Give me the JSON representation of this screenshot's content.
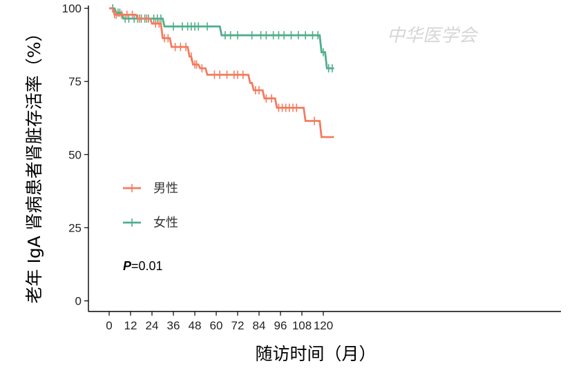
{
  "chart_data": {
    "type": "line",
    "subtype": "kaplan-meier step",
    "xlabel": "随访时间（月）",
    "ylabel": "老年 IgA 肾病患者肾脏存活率（%）",
    "xlim": [
      -3,
      125
    ],
    "ylim": [
      -3,
      101
    ],
    "xticks": [
      0,
      12,
      24,
      36,
      48,
      60,
      72,
      84,
      96,
      108,
      120
    ],
    "yticks": [
      0,
      25,
      50,
      75,
      100
    ],
    "grid": false,
    "legend_position": "center-left",
    "annotation": {
      "bold": "P",
      "rest": "=0.01"
    },
    "watermark": "中华医学会",
    "series": [
      {
        "name": "男性",
        "color": "#f47b5e",
        "steps": [
          [
            0,
            100
          ],
          [
            2,
            100
          ],
          [
            3,
            97.8
          ],
          [
            15,
            97.8
          ],
          [
            16,
            96.5
          ],
          [
            23,
            96.5
          ],
          [
            24,
            94.8
          ],
          [
            29,
            94.8
          ],
          [
            30,
            89.8
          ],
          [
            34,
            89.8
          ],
          [
            35,
            86.8
          ],
          [
            44,
            86.8
          ],
          [
            45,
            83.5
          ],
          [
            46,
            83.5
          ],
          [
            47,
            80.8
          ],
          [
            50,
            80.8
          ],
          [
            51,
            79.5
          ],
          [
            54,
            79.5
          ],
          [
            55,
            77.3
          ],
          [
            78,
            77.3
          ],
          [
            79,
            74.5
          ],
          [
            80,
            74.5
          ],
          [
            81,
            72
          ],
          [
            86,
            72
          ],
          [
            87,
            69.2
          ],
          [
            93,
            69.2
          ],
          [
            94,
            66
          ],
          [
            109,
            66
          ],
          [
            110,
            61.5
          ],
          [
            118,
            61.5
          ],
          [
            119,
            56
          ],
          [
            126,
            56
          ]
        ],
        "censored": [
          [
            3,
            98
          ],
          [
            4,
            97.8
          ],
          [
            7,
            97.8
          ],
          [
            10,
            97.8
          ],
          [
            13,
            97.8
          ],
          [
            17,
            96.5
          ],
          [
            21,
            96.5
          ],
          [
            26,
            94.8
          ],
          [
            28,
            94.8
          ],
          [
            31,
            89.8
          ],
          [
            33,
            89.8
          ],
          [
            37,
            86.8
          ],
          [
            40,
            86.8
          ],
          [
            43,
            86.8
          ],
          [
            46,
            83.5
          ],
          [
            48,
            80.8
          ],
          [
            49,
            80.8
          ],
          [
            52,
            79.5
          ],
          [
            59,
            77.3
          ],
          [
            62,
            77.3
          ],
          [
            66,
            77.3
          ],
          [
            70,
            77.3
          ],
          [
            72,
            77.3
          ],
          [
            75,
            77.3
          ],
          [
            82,
            72
          ],
          [
            84,
            72
          ],
          [
            88,
            69.2
          ],
          [
            91,
            69.2
          ],
          [
            95,
            66
          ],
          [
            97,
            66
          ],
          [
            99,
            66
          ],
          [
            101,
            66
          ],
          [
            103,
            66
          ],
          [
            105,
            66
          ],
          [
            115,
            61.5
          ]
        ]
      },
      {
        "name": "女性",
        "color": "#4fae8a",
        "steps": [
          [
            0,
            100
          ],
          [
            3,
            100
          ],
          [
            4,
            98.5
          ],
          [
            7,
            98.5
          ],
          [
            8,
            96.5
          ],
          [
            30,
            96.5
          ],
          [
            31,
            93.8
          ],
          [
            62,
            93.8
          ],
          [
            63,
            90.8
          ],
          [
            118,
            90.8
          ],
          [
            119,
            85
          ],
          [
            121,
            85
          ],
          [
            122,
            79.5
          ],
          [
            126,
            79.5
          ]
        ],
        "censored": [
          [
            2,
            100
          ],
          [
            5,
            98.5
          ],
          [
            6,
            98.5
          ],
          [
            9,
            96.5
          ],
          [
            11,
            96.5
          ],
          [
            14,
            96.5
          ],
          [
            16,
            96.5
          ],
          [
            18,
            96.5
          ],
          [
            20,
            96.5
          ],
          [
            22,
            96.5
          ],
          [
            25,
            96.5
          ],
          [
            27,
            96.5
          ],
          [
            29,
            96.5
          ],
          [
            36,
            93.8
          ],
          [
            41,
            93.8
          ],
          [
            44,
            93.8
          ],
          [
            46,
            93.8
          ],
          [
            48,
            93.8
          ],
          [
            50,
            93.8
          ],
          [
            55,
            93.8
          ],
          [
            65,
            90.8
          ],
          [
            68,
            90.8
          ],
          [
            72,
            90.8
          ],
          [
            80,
            90.8
          ],
          [
            85,
            90.8
          ],
          [
            88,
            90.8
          ],
          [
            92,
            90.8
          ],
          [
            95,
            90.8
          ],
          [
            98,
            90.8
          ],
          [
            102,
            90.8
          ],
          [
            106,
            90.8
          ],
          [
            110,
            90.8
          ],
          [
            114,
            90.8
          ],
          [
            117,
            90.8
          ],
          [
            120,
            85
          ],
          [
            123,
            79.5
          ],
          [
            125,
            79.5
          ]
        ]
      }
    ]
  }
}
